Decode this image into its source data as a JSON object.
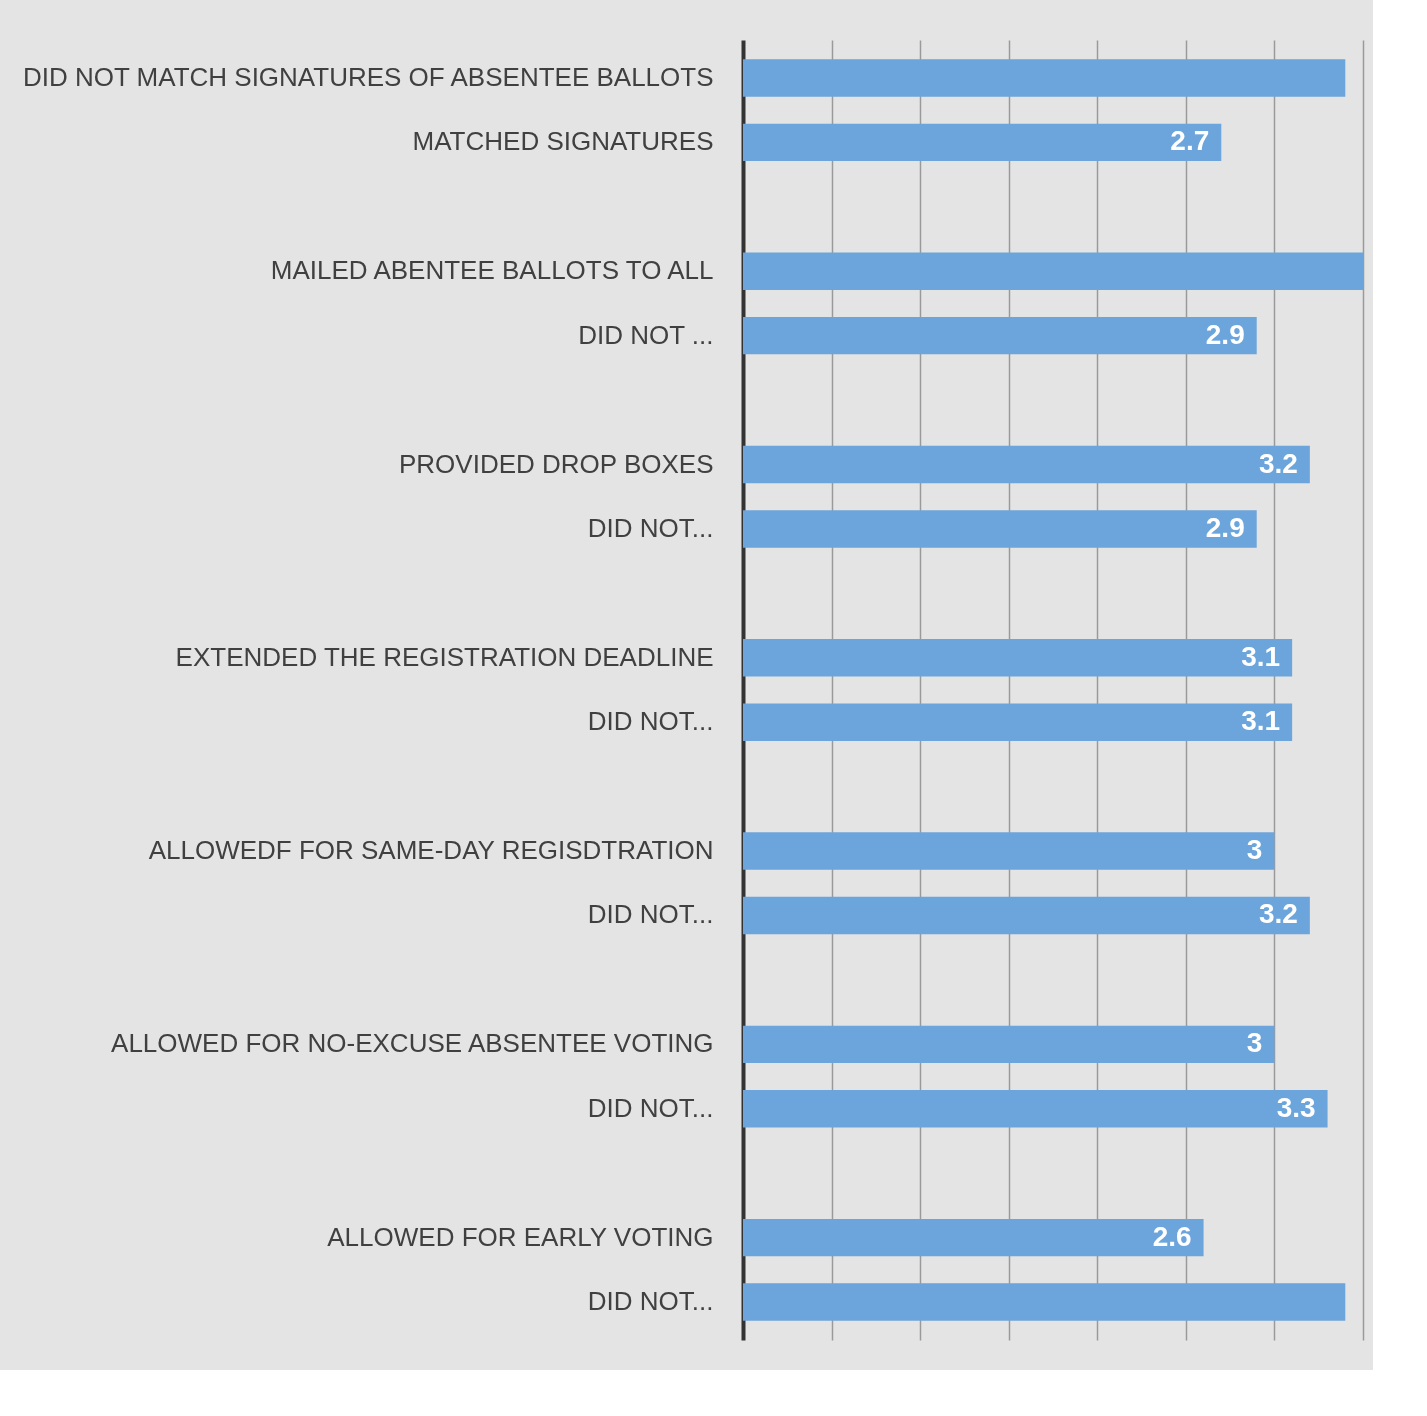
{
  "chart_data": {
    "type": "bar",
    "orientation": "horizontal",
    "categories": [
      "DID NOT MATCH SIGNATURES OF ABSENTEE BALLOTS",
      "MATCHED SIGNATURES",
      null,
      "MAILED ABENTEE BALLOTS TO ALL",
      "DID NOT ...",
      null,
      "PROVIDED DROP BOXES",
      "DID NOT...",
      null,
      "EXTENDED THE REGISTRATION DEADLINE",
      "DID NOT...",
      null,
      "ALLOWEDF FOR SAME-DAY REGISDTRATION",
      "DID NOT...",
      null,
      "ALLOWED FOR NO-EXCUSE ABSENTEE VOTING",
      "DID NOT...",
      null,
      "ALLOWED FOR EARLY VOTING",
      "DID NOT..."
    ],
    "values": [
      3.4,
      2.7,
      null,
      3.5,
      2.9,
      null,
      3.2,
      2.9,
      null,
      3.1,
      3.1,
      null,
      3,
      3.2,
      null,
      3,
      3.3,
      null,
      2.6,
      3.4
    ],
    "value_labels": [
      null,
      "2.7",
      null,
      null,
      "2.9",
      null,
      "3.2",
      "2.9",
      null,
      "3.1",
      "3.1",
      null,
      "3",
      "3.2",
      null,
      "3",
      "3.3",
      null,
      "2.6",
      null
    ],
    "color": "#6ca5dc",
    "xlim": [
      0,
      3.5
    ],
    "xticks": [
      {
        "value": 0.5,
        "label": null
      },
      {
        "value": 1,
        "label": null
      },
      {
        "value": 1.5,
        "label": null
      },
      {
        "value": 2,
        "label": null
      },
      {
        "value": 2.5,
        "label": null
      },
      {
        "value": 3,
        "label": null
      },
      {
        "value": 3.5,
        "label": null
      }
    ],
    "grid": "x",
    "tick_labels": "y"
  }
}
